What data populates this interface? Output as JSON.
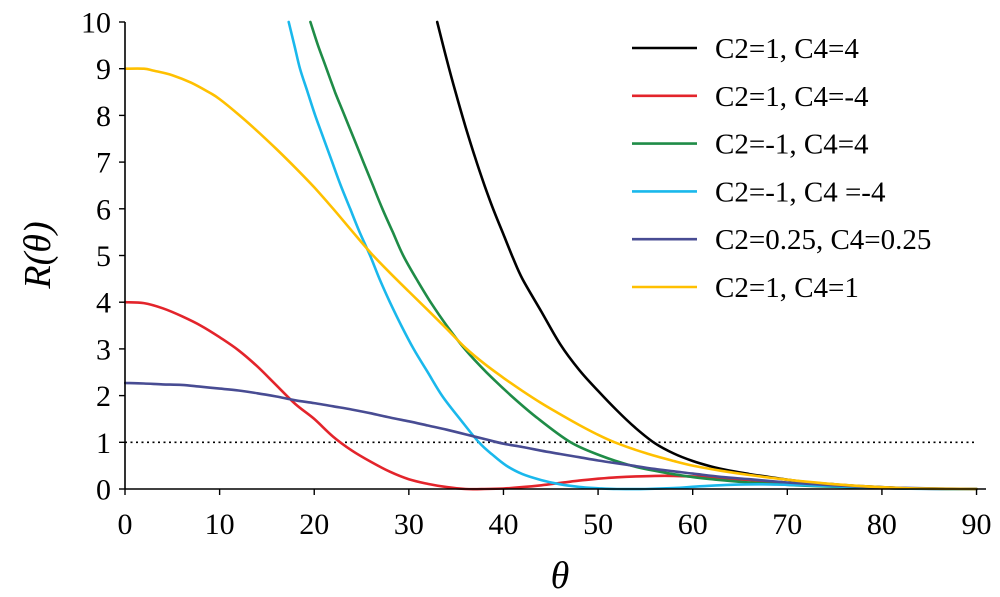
{
  "chart_data": {
    "type": "line",
    "xlabel": "θ",
    "ylabel": "R(θ)",
    "xlim": [
      0,
      91
    ],
    "ylim": [
      0,
      10
    ],
    "x_ticks": [
      0,
      10,
      20,
      30,
      40,
      50,
      60,
      70,
      80,
      90
    ],
    "y_ticks": [
      0,
      1,
      2,
      3,
      4,
      5,
      6,
      7,
      8,
      9,
      10
    ],
    "grid": false,
    "legend_position": "top-right",
    "reference_lines": [
      {
        "y": 1,
        "x_range": [
          0,
          90
        ],
        "style": "dotted",
        "color": "#000000"
      }
    ],
    "series": [
      {
        "name": "C2=1, C4=4",
        "color": "#000000",
        "x": [
          33,
          34,
          35,
          36,
          37,
          38,
          39,
          40,
          41,
          42,
          44,
          46,
          48,
          50,
          52,
          54,
          56,
          58,
          60,
          62,
          64,
          66,
          68,
          70,
          72,
          75,
          78,
          81,
          84,
          90
        ],
        "y": [
          10,
          9.2,
          8.45,
          7.75,
          7.1,
          6.5,
          5.95,
          5.45,
          4.95,
          4.5,
          3.8,
          3.1,
          2.55,
          2.1,
          1.68,
          1.3,
          0.98,
          0.76,
          0.6,
          0.48,
          0.39,
          0.32,
          0.26,
          0.2,
          0.15,
          0.1,
          0.06,
          0.03,
          0.01,
          0
        ]
      },
      {
        "name": "C2=1, C4=-4",
        "color": "#e3242b",
        "x": [
          0,
          2,
          4,
          6,
          8,
          10,
          12,
          14,
          16,
          18,
          20,
          22,
          24,
          26,
          28,
          30,
          32,
          34,
          36,
          38,
          40,
          42,
          44,
          46,
          48,
          50,
          52,
          54,
          56,
          58,
          60,
          62,
          64,
          66,
          68,
          70,
          73,
          76,
          80,
          85,
          90
        ],
        "y": [
          4.0,
          3.98,
          3.87,
          3.7,
          3.5,
          3.25,
          2.97,
          2.62,
          2.22,
          1.82,
          1.5,
          1.12,
          0.82,
          0.58,
          0.37,
          0.21,
          0.11,
          0.04,
          0,
          0,
          0.01,
          0.04,
          0.08,
          0.13,
          0.18,
          0.22,
          0.25,
          0.27,
          0.28,
          0.28,
          0.27,
          0.25,
          0.22,
          0.19,
          0.16,
          0.13,
          0.09,
          0.05,
          0.02,
          0.005,
          0
        ]
      },
      {
        "name": "C2=-1, C4=4",
        "color": "#1f8c47",
        "x": [
          19.6,
          20.4,
          21.3,
          22.2,
          23.2,
          24.2,
          25.2,
          26.2,
          27.2,
          28.3,
          29.4,
          30.8,
          32.3,
          34.0,
          35.9,
          38.2,
          40.8,
          43.7,
          47.1,
          50.2,
          53.5,
          56.5,
          59.5,
          62.5,
          66,
          70,
          74,
          78,
          82,
          86,
          90
        ],
        "y": [
          10,
          9.5,
          9,
          8.5,
          8,
          7.5,
          7,
          6.5,
          6,
          5.5,
          5,
          4.5,
          4,
          3.5,
          3,
          2.5,
          2,
          1.5,
          1,
          0.72,
          0.5,
          0.37,
          0.27,
          0.2,
          0.14,
          0.09,
          0.055,
          0.03,
          0.012,
          0.004,
          0
        ]
      },
      {
        "name": "C2=-1, C4 =-4",
        "color": "#1ab8ec",
        "x": [
          17.3,
          17.9,
          18.5,
          19.3,
          20.1,
          21.0,
          21.9,
          22.8,
          23.8,
          24.8,
          25.9,
          26.9,
          28.0,
          29.2,
          30.5,
          32.0,
          33.5,
          35.4,
          37.4,
          38.8,
          40.3,
          42,
          44,
          46,
          48,
          50,
          52,
          55,
          58,
          61,
          64,
          67,
          70,
          73,
          76,
          79,
          82,
          86,
          90
        ],
        "y": [
          10,
          9.5,
          9,
          8.5,
          8,
          7.5,
          7,
          6.5,
          6,
          5.5,
          5,
          4.5,
          4,
          3.5,
          3,
          2.5,
          2,
          1.5,
          1,
          0.74,
          0.5,
          0.32,
          0.19,
          0.1,
          0.045,
          0.015,
          0,
          0,
          0.02,
          0.06,
          0.09,
          0.1,
          0.09,
          0.07,
          0.05,
          0.03,
          0.01,
          0,
          0
        ]
      },
      {
        "name": "C2=0.25, C4=0.25",
        "color": "#484c93",
        "x": [
          0,
          2,
          4,
          6,
          8,
          10,
          12,
          14,
          16,
          18,
          20,
          22,
          24,
          26,
          28,
          30,
          32,
          34,
          36,
          38,
          40,
          42,
          44,
          46,
          48,
          50,
          52,
          54,
          56,
          58,
          60,
          63,
          66,
          70,
          74,
          78,
          82,
          86,
          90
        ],
        "y": [
          2.27,
          2.26,
          2.24,
          2.23,
          2.19,
          2.15,
          2.11,
          2.05,
          1.98,
          1.9,
          1.84,
          1.77,
          1.7,
          1.62,
          1.53,
          1.45,
          1.36,
          1.27,
          1.17,
          1.07,
          0.97,
          0.9,
          0.82,
          0.75,
          0.68,
          0.61,
          0.55,
          0.49,
          0.43,
          0.38,
          0.33,
          0.26,
          0.21,
          0.14,
          0.09,
          0.05,
          0.025,
          0.01,
          0
        ]
      },
      {
        "name": "C2=1, C4=1",
        "color": "#ffc000",
        "x": [
          0,
          2,
          3,
          5,
          7,
          9,
          10,
          12,
          14,
          16,
          18,
          20,
          22,
          24,
          26,
          28,
          30,
          32,
          34,
          36,
          38,
          40,
          42,
          44,
          46,
          48,
          50,
          52,
          55,
          58,
          60,
          63,
          66,
          70,
          74,
          78,
          81,
          84,
          90
        ],
        "y": [
          9.0,
          9.0,
          8.96,
          8.86,
          8.7,
          8.48,
          8.35,
          8.02,
          7.66,
          7.28,
          6.88,
          6.46,
          6.0,
          5.52,
          5.05,
          4.63,
          4.23,
          3.83,
          3.43,
          3.02,
          2.68,
          2.38,
          2.1,
          1.84,
          1.6,
          1.37,
          1.16,
          0.98,
          0.77,
          0.6,
          0.5,
          0.39,
          0.3,
          0.2,
          0.12,
          0.06,
          0.03,
          0.01,
          0
        ]
      }
    ]
  }
}
